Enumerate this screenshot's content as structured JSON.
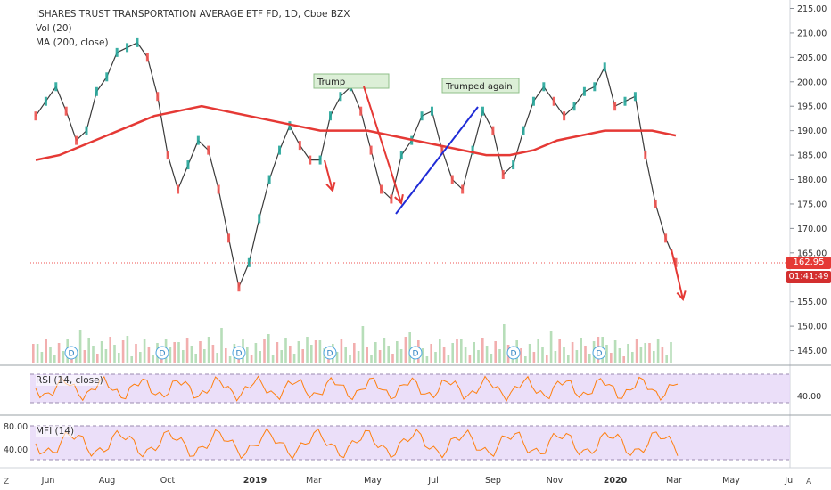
{
  "header": {
    "title": "ISHARES TRUST TRANSPORTATION AVERAGE ETF FD, 1D, Cboe BZX",
    "vol": "Vol (20)",
    "ma": "MA (200, close)"
  },
  "indicators": {
    "rsi_label": "RSI (14, close)",
    "mfi_label": "MFI (14)"
  },
  "price_tags": {
    "last": "162.95",
    "countdown": "01:41:49"
  },
  "corners": {
    "left": "Z",
    "right": "A"
  },
  "colors": {
    "up": "#26a69a",
    "down": "#ef5350",
    "ma": "#e53935",
    "rsi": "#ff7f0e",
    "band": "#e6d7f7",
    "arrow": "#e53935",
    "trend": "#1f2bd6",
    "annotation_bg": "#dcefd7"
  },
  "chart_data": {
    "type": "line",
    "xlabels": [
      "Jun",
      "Aug",
      "Oct",
      "2019",
      "Mar",
      "May",
      "Jul",
      "Sep",
      "Nov",
      "2020",
      "Mar",
      "May",
      "Jul"
    ],
    "ylabels": [
      "215.00",
      "210.00",
      "205.00",
      "200.00",
      "195.00",
      "190.00",
      "185.00",
      "180.00",
      "175.00",
      "170.00",
      "165.00",
      "160.00",
      "155.00",
      "150.00",
      "145.00"
    ],
    "ylim": [
      142,
      216
    ],
    "price_series": [
      [
        "Jun",
        193
      ],
      [
        "Jun",
        196
      ],
      [
        "Jun",
        199
      ],
      [
        "Jun",
        194
      ],
      [
        "Jul",
        188
      ],
      [
        "Jul",
        190
      ],
      [
        "Jul",
        198
      ],
      [
        "Aug",
        201
      ],
      [
        "Aug",
        206
      ],
      [
        "Aug",
        207
      ],
      [
        "Sep",
        208
      ],
      [
        "Sep",
        205
      ],
      [
        "Sep",
        197
      ],
      [
        "Oct",
        185
      ],
      [
        "Oct",
        178
      ],
      [
        "Oct",
        183
      ],
      [
        "Nov",
        188
      ],
      [
        "Nov",
        186
      ],
      [
        "Dec",
        178
      ],
      [
        "Dec",
        168
      ],
      [
        "2019",
        158
      ],
      [
        "2019",
        163
      ],
      [
        "Jan",
        172
      ],
      [
        "Feb",
        180
      ],
      [
        "Feb",
        186
      ],
      [
        "Mar",
        191
      ],
      [
        "Mar",
        187
      ],
      [
        "Mar",
        184
      ],
      [
        "Apr",
        184
      ],
      [
        "Apr",
        193
      ],
      [
        "Apr",
        197
      ],
      [
        "May",
        199
      ],
      [
        "May",
        194
      ],
      [
        "May",
        186
      ],
      [
        "Jun",
        178
      ],
      [
        "Jun",
        176
      ],
      [
        "Jun",
        185
      ],
      [
        "Jul",
        188
      ],
      [
        "Jul",
        193
      ],
      [
        "Jul",
        194
      ],
      [
        "Aug",
        186
      ],
      [
        "Aug",
        180
      ],
      [
        "Aug",
        178
      ],
      [
        "Sep",
        186
      ],
      [
        "Sep",
        194
      ],
      [
        "Sep",
        190
      ],
      [
        "Oct",
        181
      ],
      [
        "Oct",
        183
      ],
      [
        "Oct",
        190
      ],
      [
        "Nov",
        196
      ],
      [
        "Nov",
        199
      ],
      [
        "Nov",
        196
      ],
      [
        "Dec",
        193
      ],
      [
        "Dec",
        195
      ],
      [
        "Dec",
        198
      ],
      [
        "2020",
        199
      ],
      [
        "Jan",
        203
      ],
      [
        "Jan",
        195
      ],
      [
        "Feb",
        196
      ],
      [
        "Feb",
        197
      ],
      [
        "Feb",
        185
      ],
      [
        "Mar",
        175
      ],
      [
        "Mar",
        168
      ],
      [
        "Mar",
        163
      ]
    ],
    "ma_series": [
      184,
      185,
      187,
      189,
      191,
      193,
      194,
      195,
      194,
      193,
      192,
      191,
      190,
      190,
      190,
      189,
      188,
      187,
      186,
      185,
      185,
      186,
      188,
      189,
      190,
      190,
      190,
      189
    ],
    "annotations": [
      "Trump",
      "Trumped again"
    ],
    "rsi_level": "40.00",
    "mfi_levels": [
      "80.00",
      "40.00"
    ]
  }
}
